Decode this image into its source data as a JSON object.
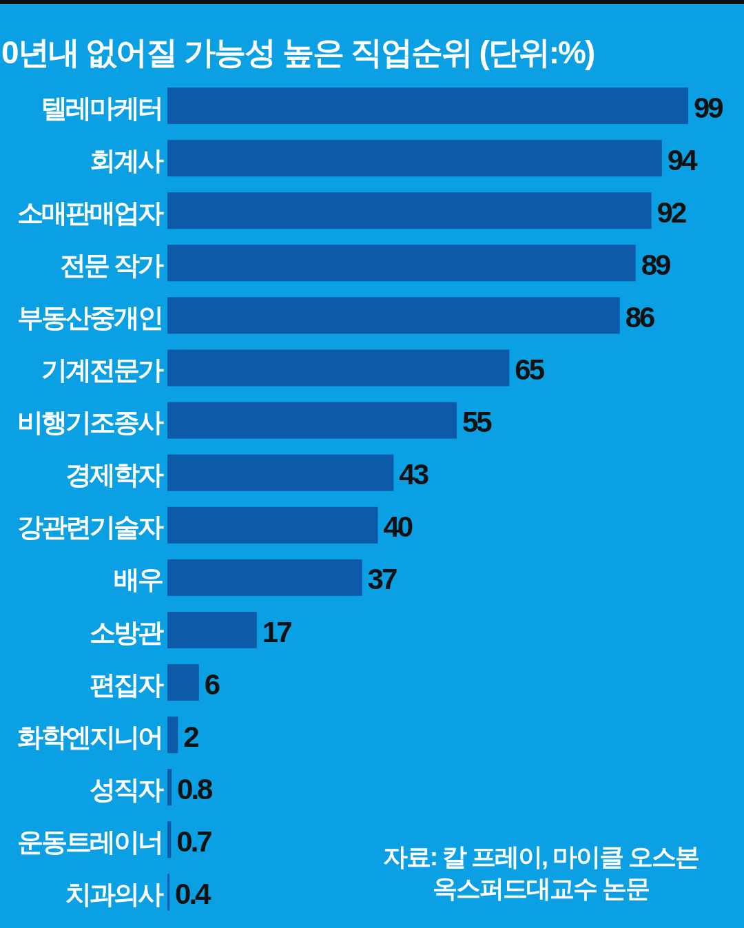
{
  "chart_data": {
    "type": "bar",
    "orientation": "horizontal",
    "title": "0년내 없어질 가능성 높은 직업순위 (단위:%)",
    "categories": [
      "텔레마케터",
      "회계사",
      "소매판매업자",
      "전문 작가",
      "부동산중개인",
      "기계전문가",
      "비행기조종사",
      "경제학자",
      "강관련기술자",
      "배우",
      "소방관",
      "편집자",
      "화학엔지니어",
      "성직자",
      "운동트레이너",
      "치과의사"
    ],
    "values": [
      99,
      94,
      92,
      89,
      86,
      65,
      55,
      43,
      40,
      37,
      17,
      6,
      2,
      0.8,
      0.7,
      0.4
    ],
    "color": "#0d5aa8",
    "data_labels": true,
    "annotations": [
      "자료: 칼 프레이, 마이클 오스본\n옥스퍼드대교수 논문"
    ]
  }
}
